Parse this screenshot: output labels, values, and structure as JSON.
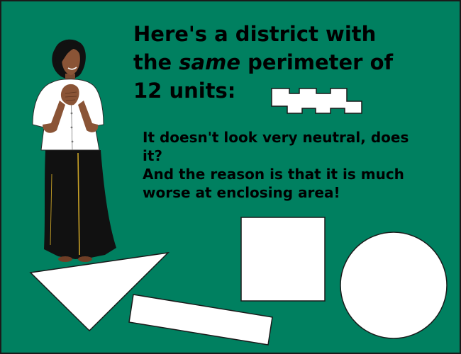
{
  "heading": {
    "line1": "Here's a district with",
    "line2_pre": "the ",
    "line2_em": "same",
    "line2_post": " perimeter of",
    "line3": "12 units:"
  },
  "body": {
    "line1": "It doesn't look very neutral, does it?",
    "line2": "And the reason is that it is much worse at enclosing area!"
  },
  "colors": {
    "background": "#008060",
    "text": "#000000",
    "shape_fill": "#ffffff",
    "shape_stroke": "#1a1a1a"
  },
  "icons": [
    "zigzag-district-shape",
    "woman-illustration",
    "triangle-shape",
    "rectangle-shape",
    "square-shape",
    "circle-shape"
  ]
}
